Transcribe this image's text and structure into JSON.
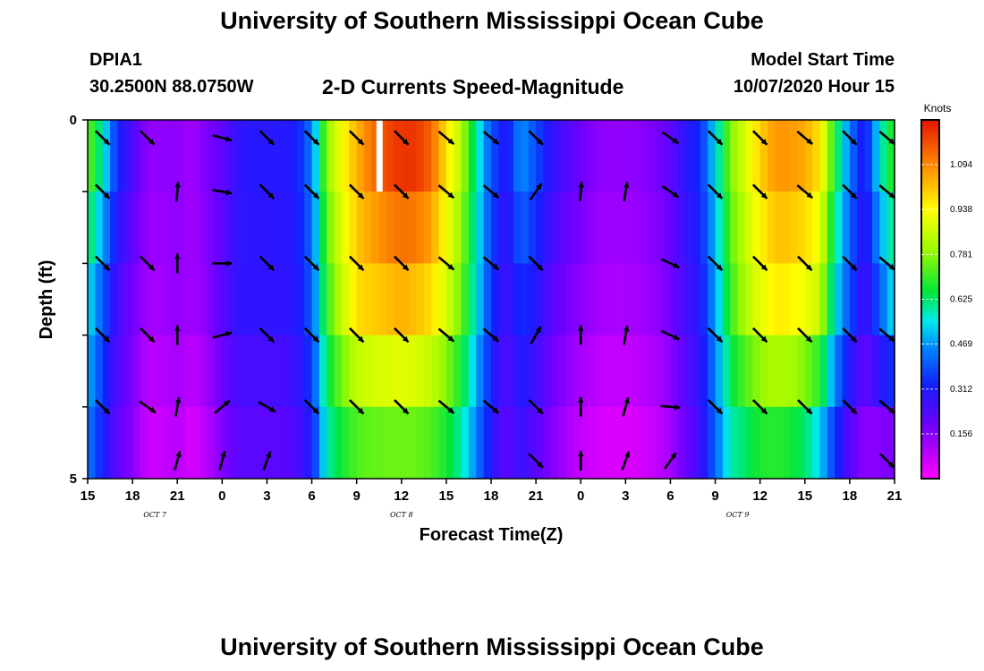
{
  "header": {
    "title": "University of Southern Mississippi Ocean Cube",
    "station_id": "DPIA1",
    "station_coords": "30.2500N 88.0750W",
    "subtitle": "2-D Currents Speed-Magnitude",
    "model_start_label": "Model Start Time",
    "model_start_value": "10/07/2020 Hour 15"
  },
  "footer": {
    "title": "University of Southern Mississippi Ocean Cube"
  },
  "chart_data": {
    "type": "heatmap",
    "title": "2-D Currents Speed-Magnitude",
    "xlabel": "Forecast Time(Z)",
    "ylabel": "Depth (ft)",
    "x_hours_range": [
      0,
      54
    ],
    "x_tick_hours": [
      0,
      3,
      6,
      9,
      12,
      15,
      18,
      21,
      24,
      27,
      30,
      33,
      36,
      39,
      42,
      45,
      48,
      51,
      54
    ],
    "x_tick_labels": [
      "15",
      "18",
      "21",
      "0",
      "3",
      "6",
      "9",
      "12",
      "15",
      "18",
      "21",
      "0",
      "3",
      "6",
      "9",
      "12",
      "15",
      "18",
      "21"
    ],
    "date_labels": [
      {
        "text": "OCT 7",
        "hour": 4.5
      },
      {
        "text": "OCT 8",
        "hour": 21
      },
      {
        "text": "OCT 9",
        "hour": 43.5
      }
    ],
    "y_range": [
      0,
      5
    ],
    "y_tick_labels": [
      "0",
      "5"
    ],
    "depth_levels": [
      0.25,
      1.0,
      2.0,
      3.0,
      4.0,
      4.75
    ],
    "colorbar": {
      "label": "Knots",
      "min": 0.0,
      "max": 1.25,
      "ticks": [
        0.156,
        0.312,
        0.469,
        0.625,
        0.781,
        0.938,
        1.094
      ],
      "tick_labels": [
        "0.156",
        "0.312",
        "0.469",
        "0.625",
        "0.781",
        "0.938",
        "1.094"
      ]
    },
    "speed_profile_keys": {
      "hours": [
        0,
        1,
        2,
        3,
        4,
        5,
        6,
        7,
        8,
        9,
        10,
        11,
        12,
        13,
        14,
        15,
        16,
        17,
        18,
        19,
        20,
        21,
        22,
        23,
        24,
        25,
        26,
        27,
        28,
        29,
        30,
        31,
        32,
        33,
        34,
        35,
        36,
        37,
        38,
        39,
        40,
        41,
        42,
        43,
        44,
        45,
        46,
        47,
        48,
        49,
        50,
        51,
        52,
        53,
        54
      ],
      "surface": [
        0.8,
        0.62,
        0.35,
        0.25,
        0.15,
        0.15,
        0.15,
        0.12,
        0.18,
        0.2,
        0.28,
        0.3,
        0.3,
        0.3,
        0.32,
        0.45,
        0.8,
        0.95,
        1.05,
        1.15,
        1.22,
        1.25,
        1.25,
        1.18,
        1.0,
        0.85,
        0.6,
        0.4,
        0.3,
        0.5,
        0.4,
        0.3,
        0.25,
        0.2,
        0.16,
        0.15,
        0.15,
        0.16,
        0.18,
        0.22,
        0.3,
        0.35,
        0.55,
        0.78,
        0.9,
        1.02,
        1.1,
        1.1,
        1.08,
        1.0,
        0.7,
        0.45,
        0.3,
        0.6,
        0.75
      ],
      "middle": [
        0.55,
        0.4,
        0.25,
        0.18,
        0.12,
        0.12,
        0.14,
        0.12,
        0.15,
        0.22,
        0.28,
        0.28,
        0.28,
        0.28,
        0.3,
        0.4,
        0.7,
        0.85,
        0.98,
        1.0,
        1.02,
        1.04,
        1.02,
        0.98,
        0.88,
        0.75,
        0.55,
        0.35,
        0.25,
        0.35,
        0.3,
        0.22,
        0.18,
        0.15,
        0.12,
        0.11,
        0.11,
        0.12,
        0.14,
        0.18,
        0.25,
        0.3,
        0.48,
        0.7,
        0.82,
        0.9,
        0.96,
        0.95,
        0.92,
        0.85,
        0.55,
        0.38,
        0.25,
        0.4,
        0.55
      ],
      "bottom": [
        0.42,
        0.3,
        0.2,
        0.15,
        0.05,
        0.06,
        0.08,
        0.03,
        0.08,
        0.15,
        0.2,
        0.2,
        0.2,
        0.2,
        0.22,
        0.3,
        0.55,
        0.62,
        0.66,
        0.68,
        0.68,
        0.68,
        0.68,
        0.66,
        0.62,
        0.55,
        0.42,
        0.28,
        0.2,
        0.25,
        0.2,
        0.15,
        0.1,
        0.06,
        0.04,
        0.03,
        0.03,
        0.04,
        0.06,
        0.1,
        0.18,
        0.25,
        0.4,
        0.55,
        0.58,
        0.62,
        0.62,
        0.6,
        0.55,
        0.45,
        0.3,
        0.18,
        0.12,
        0.1,
        0.08
      ]
    },
    "vectors": {
      "hours": [
        1,
        4,
        6,
        9,
        12,
        15,
        18,
        21,
        24,
        27,
        30,
        33,
        36,
        39,
        42,
        45,
        48,
        51,
        53.5
      ],
      "angle_deg_by_level": [
        [
          45,
          45,
          null,
          15,
          45,
          45,
          45,
          45,
          40,
          40,
          45,
          null,
          null,
          35,
          45,
          45,
          40,
          45,
          40
        ],
        [
          45,
          null,
          -85,
          10,
          45,
          45,
          45,
          45,
          40,
          40,
          -55,
          -85,
          -80,
          35,
          45,
          45,
          40,
          45,
          40
        ],
        [
          45,
          45,
          -90,
          0,
          45,
          45,
          45,
          45,
          40,
          40,
          45,
          null,
          null,
          25,
          45,
          45,
          45,
          45,
          40
        ],
        [
          45,
          45,
          -90,
          -15,
          45,
          45,
          45,
          45,
          40,
          40,
          -60,
          -90,
          -80,
          25,
          45,
          45,
          45,
          45,
          40
        ],
        [
          45,
          35,
          -80,
          -40,
          30,
          45,
          45,
          45,
          40,
          40,
          45,
          -90,
          -75,
          5,
          45,
          45,
          45,
          45,
          40
        ],
        [
          null,
          null,
          -75,
          -75,
          -70,
          null,
          null,
          null,
          null,
          null,
          45,
          -90,
          -70,
          -55,
          null,
          null,
          null,
          null,
          45
        ]
      ]
    }
  }
}
